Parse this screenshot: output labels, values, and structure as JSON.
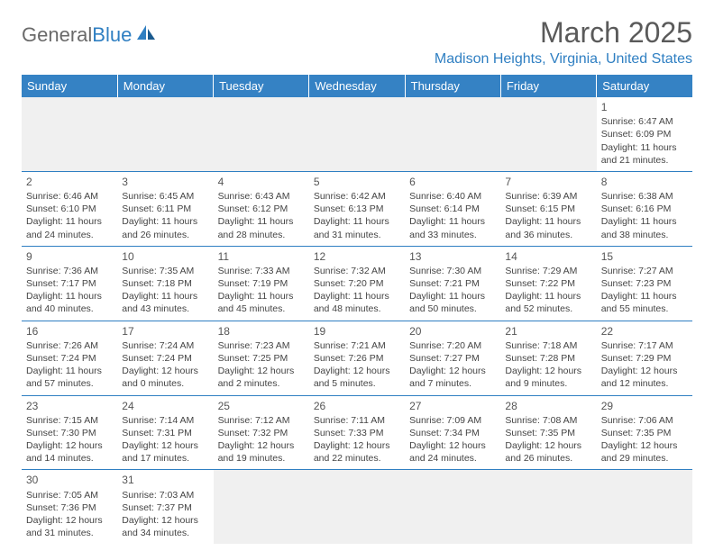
{
  "logo": {
    "text_gray": "General",
    "text_blue": "Blue"
  },
  "title": "March 2025",
  "location": "Madison Heights, Virginia, United States",
  "colors": {
    "header_bg": "#3582c4",
    "header_text": "#ffffff",
    "accent": "#2f7fc2",
    "logo_gray": "#6a6a6a",
    "title_gray": "#5a5a5a",
    "body_text": "#444444",
    "empty_bg": "#f0f0f0",
    "border": "#2f7fc2"
  },
  "day_headers": [
    "Sunday",
    "Monday",
    "Tuesday",
    "Wednesday",
    "Thursday",
    "Friday",
    "Saturday"
  ],
  "weeks": [
    [
      null,
      null,
      null,
      null,
      null,
      null,
      {
        "d": "1",
        "sr": "6:47 AM",
        "ss": "6:09 PM",
        "dl": "11 hours and 21 minutes."
      }
    ],
    [
      {
        "d": "2",
        "sr": "6:46 AM",
        "ss": "6:10 PM",
        "dl": "11 hours and 24 minutes."
      },
      {
        "d": "3",
        "sr": "6:45 AM",
        "ss": "6:11 PM",
        "dl": "11 hours and 26 minutes."
      },
      {
        "d": "4",
        "sr": "6:43 AM",
        "ss": "6:12 PM",
        "dl": "11 hours and 28 minutes."
      },
      {
        "d": "5",
        "sr": "6:42 AM",
        "ss": "6:13 PM",
        "dl": "11 hours and 31 minutes."
      },
      {
        "d": "6",
        "sr": "6:40 AM",
        "ss": "6:14 PM",
        "dl": "11 hours and 33 minutes."
      },
      {
        "d": "7",
        "sr": "6:39 AM",
        "ss": "6:15 PM",
        "dl": "11 hours and 36 minutes."
      },
      {
        "d": "8",
        "sr": "6:38 AM",
        "ss": "6:16 PM",
        "dl": "11 hours and 38 minutes."
      }
    ],
    [
      {
        "d": "9",
        "sr": "7:36 AM",
        "ss": "7:17 PM",
        "dl": "11 hours and 40 minutes."
      },
      {
        "d": "10",
        "sr": "7:35 AM",
        "ss": "7:18 PM",
        "dl": "11 hours and 43 minutes."
      },
      {
        "d": "11",
        "sr": "7:33 AM",
        "ss": "7:19 PM",
        "dl": "11 hours and 45 minutes."
      },
      {
        "d": "12",
        "sr": "7:32 AM",
        "ss": "7:20 PM",
        "dl": "11 hours and 48 minutes."
      },
      {
        "d": "13",
        "sr": "7:30 AM",
        "ss": "7:21 PM",
        "dl": "11 hours and 50 minutes."
      },
      {
        "d": "14",
        "sr": "7:29 AM",
        "ss": "7:22 PM",
        "dl": "11 hours and 52 minutes."
      },
      {
        "d": "15",
        "sr": "7:27 AM",
        "ss": "7:23 PM",
        "dl": "11 hours and 55 minutes."
      }
    ],
    [
      {
        "d": "16",
        "sr": "7:26 AM",
        "ss": "7:24 PM",
        "dl": "11 hours and 57 minutes."
      },
      {
        "d": "17",
        "sr": "7:24 AM",
        "ss": "7:24 PM",
        "dl": "12 hours and 0 minutes."
      },
      {
        "d": "18",
        "sr": "7:23 AM",
        "ss": "7:25 PM",
        "dl": "12 hours and 2 minutes."
      },
      {
        "d": "19",
        "sr": "7:21 AM",
        "ss": "7:26 PM",
        "dl": "12 hours and 5 minutes."
      },
      {
        "d": "20",
        "sr": "7:20 AM",
        "ss": "7:27 PM",
        "dl": "12 hours and 7 minutes."
      },
      {
        "d": "21",
        "sr": "7:18 AM",
        "ss": "7:28 PM",
        "dl": "12 hours and 9 minutes."
      },
      {
        "d": "22",
        "sr": "7:17 AM",
        "ss": "7:29 PM",
        "dl": "12 hours and 12 minutes."
      }
    ],
    [
      {
        "d": "23",
        "sr": "7:15 AM",
        "ss": "7:30 PM",
        "dl": "12 hours and 14 minutes."
      },
      {
        "d": "24",
        "sr": "7:14 AM",
        "ss": "7:31 PM",
        "dl": "12 hours and 17 minutes."
      },
      {
        "d": "25",
        "sr": "7:12 AM",
        "ss": "7:32 PM",
        "dl": "12 hours and 19 minutes."
      },
      {
        "d": "26",
        "sr": "7:11 AM",
        "ss": "7:33 PM",
        "dl": "12 hours and 22 minutes."
      },
      {
        "d": "27",
        "sr": "7:09 AM",
        "ss": "7:34 PM",
        "dl": "12 hours and 24 minutes."
      },
      {
        "d": "28",
        "sr": "7:08 AM",
        "ss": "7:35 PM",
        "dl": "12 hours and 26 minutes."
      },
      {
        "d": "29",
        "sr": "7:06 AM",
        "ss": "7:35 PM",
        "dl": "12 hours and 29 minutes."
      }
    ],
    [
      {
        "d": "30",
        "sr": "7:05 AM",
        "ss": "7:36 PM",
        "dl": "12 hours and 31 minutes."
      },
      {
        "d": "31",
        "sr": "7:03 AM",
        "ss": "7:37 PM",
        "dl": "12 hours and 34 minutes."
      },
      null,
      null,
      null,
      null,
      null
    ]
  ],
  "labels": {
    "sunrise": "Sunrise: ",
    "sunset": "Sunset: ",
    "daylight": "Daylight: "
  }
}
